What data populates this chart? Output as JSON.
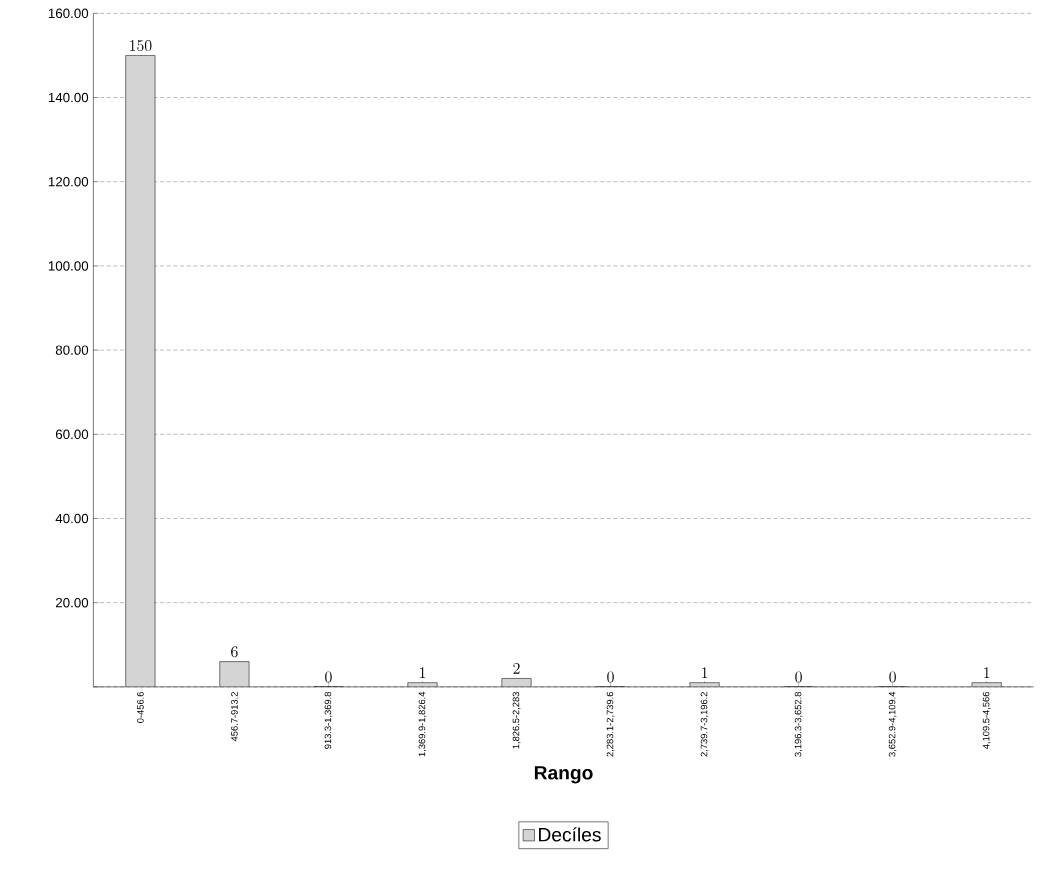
{
  "chart_data": {
    "type": "bar",
    "xlabel": "Rango",
    "categories": [
      "0-456.6",
      "456.7-913.2",
      "913.3-1,369.8",
      "1,369.9-1,826.4",
      "1,826.5-2,283",
      "2,283.1-2,739.6",
      "2,739.7-3,196.2",
      "3,196.3-3,652.8",
      "3,652.9-4,109.4",
      "4,109.5-4,566"
    ],
    "series": [
      {
        "name": "Decíles",
        "color": "#d4d4d4",
        "values": [
          150,
          6,
          0,
          1,
          2,
          0,
          1,
          0,
          0,
          1
        ]
      }
    ],
    "ylim": [
      0,
      160
    ],
    "yticks": [
      {
        "value": 0,
        "label": null
      },
      "20.00",
      "40.00",
      "60.00",
      "80.00",
      "100.00",
      "120.00",
      "140.00",
      "160.00"
    ],
    "grid": "y",
    "legend": "bottom",
    "data_labels": true
  }
}
